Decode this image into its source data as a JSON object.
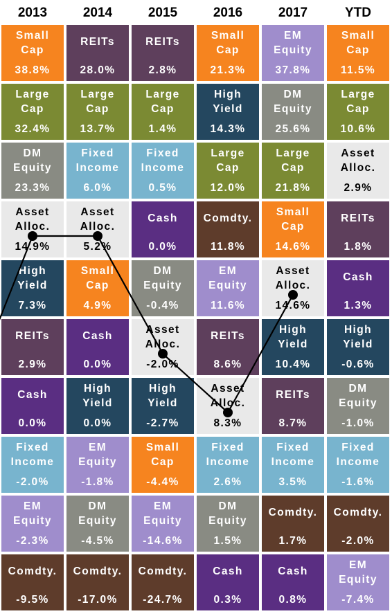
{
  "colors": {
    "Small Cap": {
      "bg": "#F6841F",
      "fg": "#FFFFFF"
    },
    "REITs": {
      "bg": "#5E3F5C",
      "fg": "#FFFFFF"
    },
    "EM Equity": {
      "bg": "#9F8DCC",
      "fg": "#FFFFFF"
    },
    "Large Cap": {
      "bg": "#7B8A33",
      "fg": "#FFFFFF"
    },
    "High Yield": {
      "bg": "#24475F",
      "fg": "#FFFFFF"
    },
    "DM Equity": {
      "bg": "#898B83",
      "fg": "#FFFFFF"
    },
    "Fixed Income": {
      "bg": "#78B4CE",
      "fg": "#FFFFFF"
    },
    "Asset Alloc.": {
      "bg": "#E9E9E9",
      "fg": "#000000"
    },
    "Cash": {
      "bg": "#5A2E82",
      "fg": "#FFFFFF"
    },
    "Comdty.": {
      "bg": "#5E3C2B",
      "fg": "#FFFFFF"
    }
  },
  "path_color": "#000000",
  "chart_data": {
    "type": "table",
    "columns": [
      "2013",
      "2014",
      "2015",
      "2016",
      "2017",
      "YTD"
    ],
    "cells": [
      [
        {
          "label": "Small Cap",
          "value": "38.8%"
        },
        {
          "label": "Large Cap",
          "value": "32.4%"
        },
        {
          "label": "DM Equity",
          "value": "23.3%"
        },
        {
          "label": "Asset Alloc.",
          "value": "14.9%"
        },
        {
          "label": "High Yield",
          "value": "7.3%"
        },
        {
          "label": "REITs",
          "value": "2.9%"
        },
        {
          "label": "Cash",
          "value": "0.0%"
        },
        {
          "label": "Fixed Income",
          "value": "-2.0%"
        },
        {
          "label": "EM Equity",
          "value": "-2.3%"
        },
        {
          "label": "Comdty.",
          "value": "-9.5%"
        }
      ],
      [
        {
          "label": "REITs",
          "value": "28.0%"
        },
        {
          "label": "Large Cap",
          "value": "13.7%"
        },
        {
          "label": "Fixed Income",
          "value": "6.0%"
        },
        {
          "label": "Asset Alloc.",
          "value": "5.2%"
        },
        {
          "label": "Small Cap",
          "value": "4.9%"
        },
        {
          "label": "Cash",
          "value": "0.0%"
        },
        {
          "label": "High Yield",
          "value": "0.0%"
        },
        {
          "label": "EM Equity",
          "value": "-1.8%"
        },
        {
          "label": "DM Equity",
          "value": "-4.5%"
        },
        {
          "label": "Comdty.",
          "value": "-17.0%"
        }
      ],
      [
        {
          "label": "REITs",
          "value": "2.8%"
        },
        {
          "label": "Large Cap",
          "value": "1.4%"
        },
        {
          "label": "Fixed Income",
          "value": "0.5%"
        },
        {
          "label": "Cash",
          "value": "0.0%"
        },
        {
          "label": "DM Equity",
          "value": "-0.4%"
        },
        {
          "label": "Asset Alloc.",
          "value": "-2.0%"
        },
        {
          "label": "High Yield",
          "value": "-2.7%"
        },
        {
          "label": "Small Cap",
          "value": "-4.4%"
        },
        {
          "label": "EM Equity",
          "value": "-14.6%"
        },
        {
          "label": "Comdty.",
          "value": "-24.7%"
        }
      ],
      [
        {
          "label": "Small Cap",
          "value": "21.3%"
        },
        {
          "label": "High Yield",
          "value": "14.3%"
        },
        {
          "label": "Large Cap",
          "value": "12.0%"
        },
        {
          "label": "Comdty.",
          "value": "11.8%"
        },
        {
          "label": "EM Equity",
          "value": "11.6%"
        },
        {
          "label": "REITs",
          "value": "8.6%"
        },
        {
          "label": "Asset Alloc.",
          "value": "8.3%"
        },
        {
          "label": "Fixed Income",
          "value": "2.6%"
        },
        {
          "label": "DM Equity",
          "value": "1.5%"
        },
        {
          "label": "Cash",
          "value": "0.3%"
        }
      ],
      [
        {
          "label": "EM Equity",
          "value": "37.8%"
        },
        {
          "label": "DM Equity",
          "value": "25.6%"
        },
        {
          "label": "Large Cap",
          "value": "21.8%"
        },
        {
          "label": "Small Cap",
          "value": "14.6%"
        },
        {
          "label": "Asset Alloc.",
          "value": "14.6%"
        },
        {
          "label": "High Yield",
          "value": "10.4%"
        },
        {
          "label": "REITs",
          "value": "8.7%"
        },
        {
          "label": "Fixed Income",
          "value": "3.5%"
        },
        {
          "label": "Comdty.",
          "value": "1.7%"
        },
        {
          "label": "Cash",
          "value": "0.8%"
        }
      ],
      [
        {
          "label": "Small Cap",
          "value": "11.5%"
        },
        {
          "label": "Large Cap",
          "value": "10.6%"
        },
        {
          "label": "Asset Alloc.",
          "value": "2.9%"
        },
        {
          "label": "REITs",
          "value": "1.8%"
        },
        {
          "label": "Cash",
          "value": "1.3%"
        },
        {
          "label": "High Yield",
          "value": "-0.6%"
        },
        {
          "label": "DM Equity",
          "value": "-1.0%"
        },
        {
          "label": "Fixed Income",
          "value": "-1.6%"
        },
        {
          "label": "Comdty.",
          "value": "-2.0%"
        },
        {
          "label": "EM Equity",
          "value": "-7.4%"
        }
      ]
    ],
    "highlight_path": {
      "label": "Asset Alloc.",
      "values": [
        "14.9%",
        "5.2%",
        "-2.0%",
        "8.3%",
        "14.6%"
      ]
    }
  }
}
